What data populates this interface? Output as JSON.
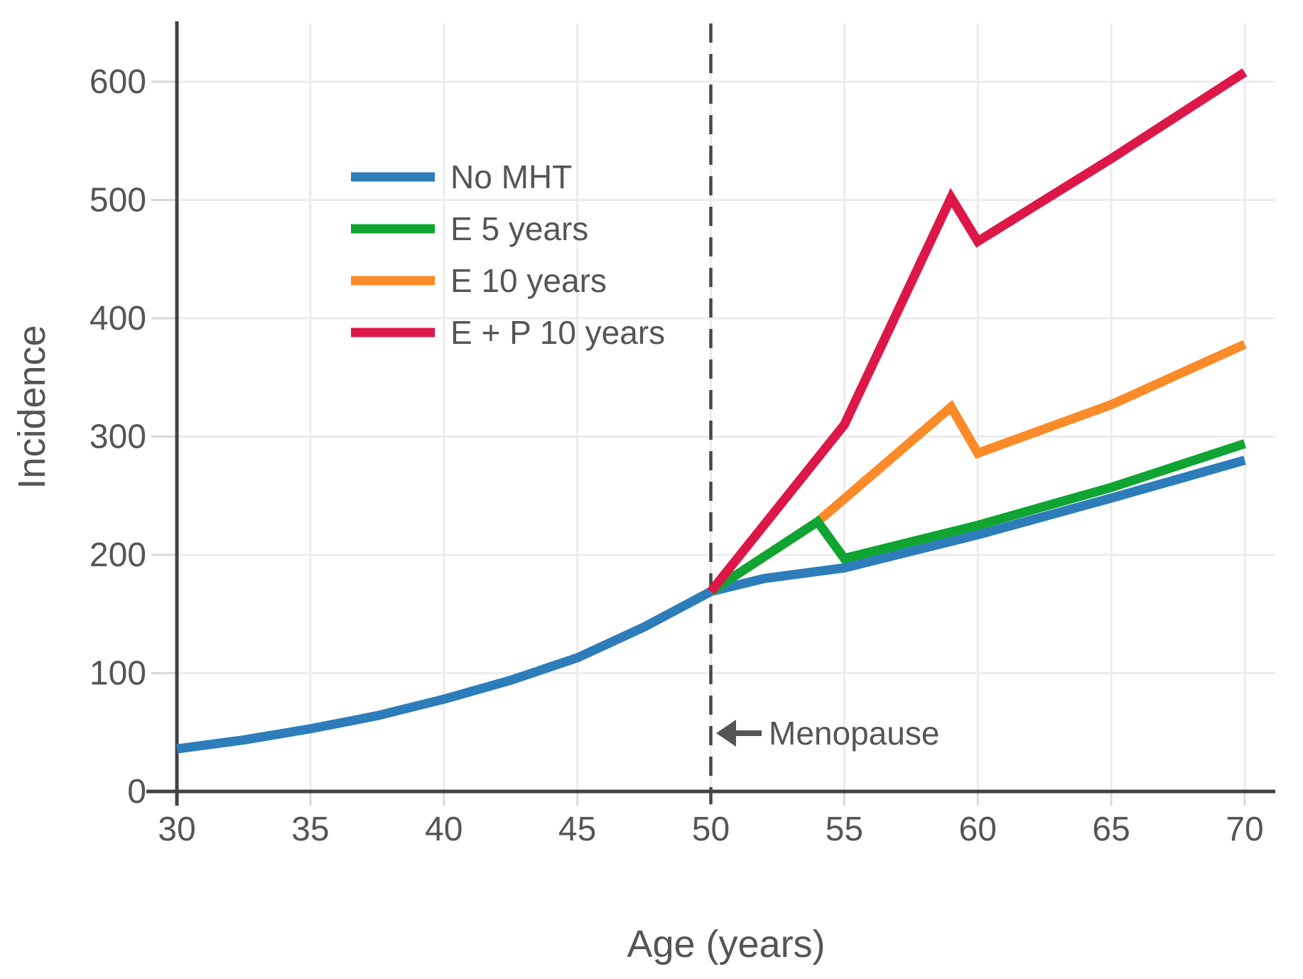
{
  "chart_data": {
    "type": "line",
    "title": "",
    "xlabel": "Age (years)",
    "ylabel": "Incidence",
    "x_ticks": [
      30,
      35,
      40,
      45,
      50,
      55,
      60,
      65,
      70
    ],
    "y_ticks": [
      0,
      100,
      200,
      300,
      400,
      500,
      600
    ],
    "xlim": [
      30,
      71
    ],
    "ylim": [
      0,
      650
    ],
    "grid": true,
    "legend_position": "upper-left-inside",
    "series": [
      {
        "name": "No MHT",
        "color": "#2d7dbb",
        "points": [
          [
            30,
            36
          ],
          [
            32.5,
            43.5
          ],
          [
            35,
            53
          ],
          [
            37.5,
            64
          ],
          [
            40,
            78
          ],
          [
            42.5,
            94
          ],
          [
            45,
            113
          ],
          [
            47.5,
            139
          ],
          [
            50,
            169
          ],
          [
            52,
            180
          ],
          [
            55,
            189
          ],
          [
            60,
            217
          ],
          [
            65,
            248
          ],
          [
            70,
            280
          ]
        ]
      },
      {
        "name": "E 5 years",
        "color": "#10a433",
        "points": [
          [
            50,
            169
          ],
          [
            54,
            228
          ],
          [
            55,
            197
          ],
          [
            60,
            225
          ],
          [
            65,
            257
          ],
          [
            70,
            294
          ]
        ]
      },
      {
        "name": "E 10 years",
        "color": "#fb8b28",
        "points": [
          [
            50,
            169
          ],
          [
            54,
            228
          ],
          [
            59,
            325
          ],
          [
            60,
            286
          ],
          [
            65,
            327
          ],
          [
            70,
            378
          ]
        ]
      },
      {
        "name": "E + P 10 years",
        "color": "#dd1747",
        "points": [
          [
            50,
            169
          ],
          [
            55,
            310
          ],
          [
            59,
            502
          ],
          [
            60,
            465
          ],
          [
            65,
            535
          ],
          [
            70,
            608
          ]
        ]
      }
    ],
    "annotation": {
      "label": "Menopause",
      "x": 50,
      "arrow_direction": "left",
      "reference_line": "dashed vertical at x=50"
    },
    "styles": {
      "grid_color": "#ececec",
      "tick_color": "#d9d9d9",
      "axis_color": "#424242",
      "dashed_line_color": "#474747",
      "text_color": "#555555"
    }
  }
}
